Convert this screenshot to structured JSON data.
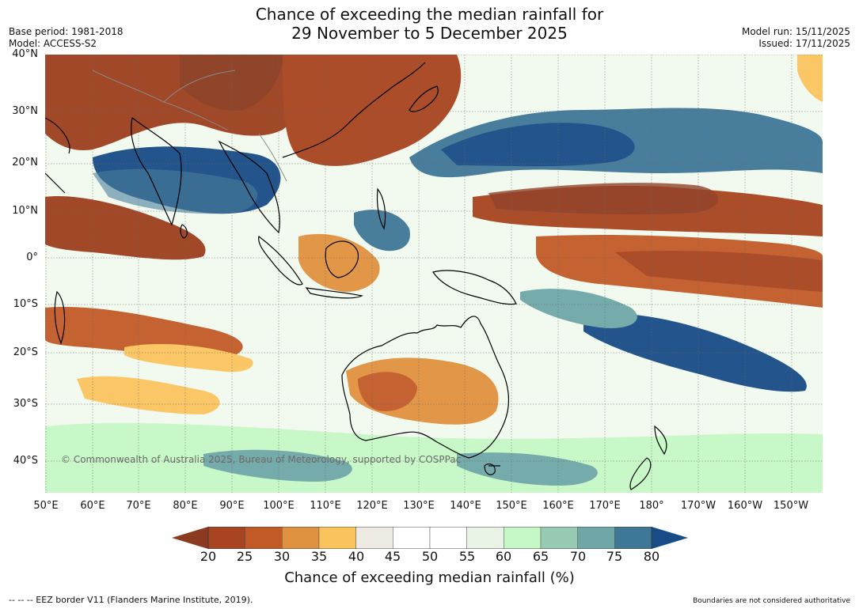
{
  "title": {
    "line1": "Chance of exceeding the median rainfall for",
    "line2": "29 November to 5 December 2025"
  },
  "meta": {
    "base_period": "Base period: 1981-2018",
    "model": "Model: ACCESS-S2",
    "model_run": "Model run: 15/11/2025",
    "issued": "Issued: 17/11/2025"
  },
  "map": {
    "lat_labels": [
      "40°N",
      "30°N",
      "20°N",
      "10°N",
      "0°",
      "10°S",
      "20°S",
      "30°S",
      "40°S"
    ],
    "lon_labels": [
      "50°E",
      "60°E",
      "70°E",
      "80°E",
      "90°E",
      "100°E",
      "110°E",
      "120°E",
      "130°E",
      "140°E",
      "150°E",
      "160°E",
      "170°E",
      "180°",
      "170°W",
      "160°W",
      "150°W"
    ],
    "copyright": "© Commonwealth of Australia 2025, Bureau of Meteorology, supported by COSPPac"
  },
  "colorbar": {
    "ticks": [
      "20",
      "25",
      "30",
      "35",
      "40",
      "45",
      "50",
      "55",
      "60",
      "65",
      "70",
      "75",
      "80"
    ],
    "colors": [
      "#8b3a1f",
      "#a8441f",
      "#c25a27",
      "#e0913f",
      "#fbc35e",
      "#eeebe5",
      "#ffffff",
      "#ffffff",
      "#e9f4e6",
      "#c6f7c6",
      "#98cbb4",
      "#6ea7a6",
      "#3f7896",
      "#184c86"
    ],
    "label": "Chance of exceeding median rainfall (%)"
  },
  "footer": {
    "eez": "--  --  -- EEZ border V11 (Flanders Marine Institute, 2019).",
    "boundaries": "Boundaries are not considered authoritative"
  }
}
